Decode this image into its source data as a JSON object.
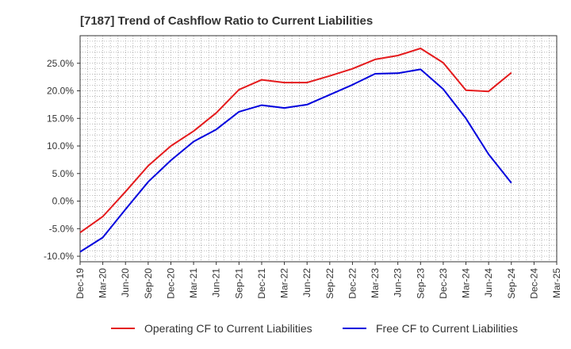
{
  "chart_data": {
    "type": "line",
    "title": "[7187]  Trend of Cashflow Ratio to Current Liabilities",
    "xlabel": "",
    "ylabel": "",
    "categories": [
      "Dec-19",
      "Mar-20",
      "Jun-20",
      "Sep-20",
      "Dec-20",
      "Mar-21",
      "Jun-21",
      "Sep-21",
      "Dec-21",
      "Mar-22",
      "Jun-22",
      "Sep-22",
      "Dec-22",
      "Mar-23",
      "Jun-23",
      "Sep-23",
      "Dec-23",
      "Mar-24",
      "Jun-24",
      "Sep-24",
      "Dec-24",
      "Mar-25"
    ],
    "ylim": [
      -11,
      30
    ],
    "yticks": [
      -10,
      -5,
      0,
      5,
      10,
      15,
      20,
      25
    ],
    "ytick_labels": [
      "-10.0%",
      "-5.0%",
      "0.0%",
      "5.0%",
      "10.0%",
      "15.0%",
      "20.0%",
      "25.0%"
    ],
    "grid": true,
    "legend_position": "bottom",
    "series": [
      {
        "name": "Operating CF to Current Liabilities",
        "color": "#e41a1c",
        "values": [
          -5.7,
          -2.8,
          1.7,
          6.4,
          10.0,
          12.7,
          16.0,
          20.2,
          22.0,
          21.5,
          21.5,
          22.7,
          24.0,
          25.7,
          26.4,
          27.7,
          25.1,
          20.1,
          19.9,
          23.3,
          null,
          null
        ]
      },
      {
        "name": "Free CF to Current Liabilities",
        "color": "#0000dd",
        "values": [
          -9.2,
          -6.6,
          -1.5,
          3.5,
          7.4,
          10.8,
          13.0,
          16.2,
          17.4,
          16.9,
          17.5,
          19.3,
          21.1,
          23.1,
          23.2,
          23.9,
          20.3,
          15.0,
          8.5,
          3.3,
          null,
          null
        ]
      }
    ]
  }
}
